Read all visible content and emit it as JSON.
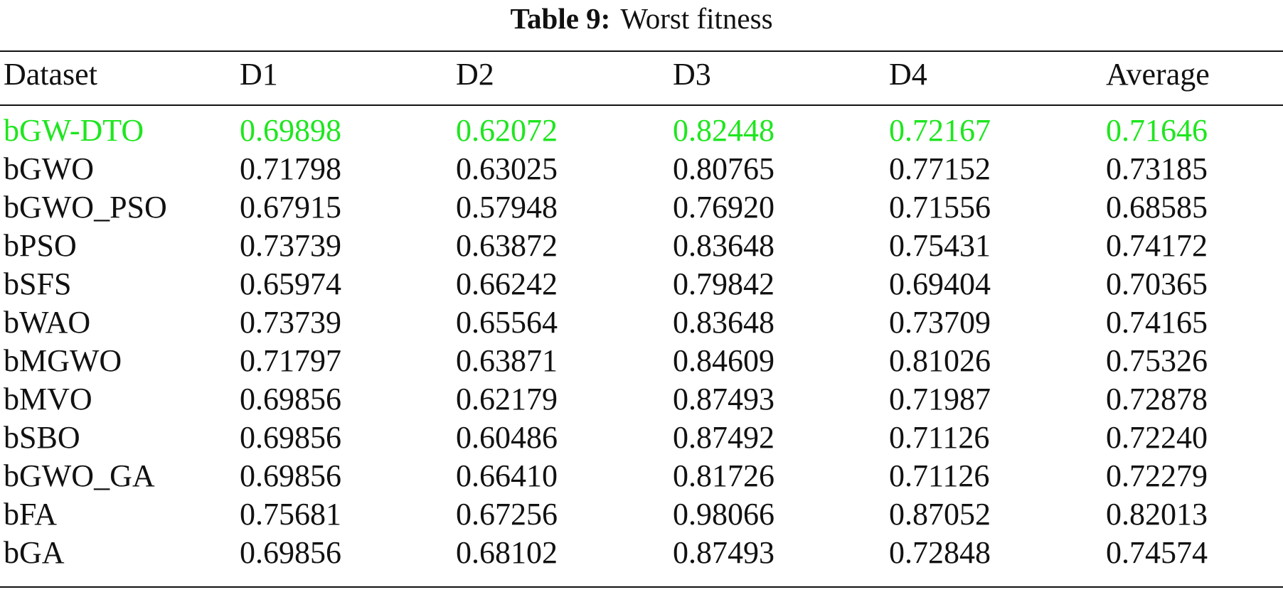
{
  "caption": {
    "label": "Table 9:",
    "text": "Worst fitness"
  },
  "colors": {
    "highlight": "#1ee61e",
    "text": "#111111"
  },
  "table": {
    "columns": [
      "Dataset",
      "D1",
      "D2",
      "D3",
      "D4",
      "Average"
    ],
    "rows": [
      [
        "bGW-DTO",
        "0.69898",
        "0.62072",
        "0.82448",
        "0.72167",
        "0.71646"
      ],
      [
        "bGWO",
        "0.71798",
        "0.63025",
        "0.80765",
        "0.77152",
        "0.73185"
      ],
      [
        "bGWO_PSO",
        "0.67915",
        "0.57948",
        "0.76920",
        "0.71556",
        "0.68585"
      ],
      [
        "bPSO",
        "0.73739",
        "0.63872",
        "0.83648",
        "0.75431",
        "0.74172"
      ],
      [
        "bSFS",
        "0.65974",
        "0.66242",
        "0.79842",
        "0.69404",
        "0.70365"
      ],
      [
        "bWAO",
        "0.73739",
        "0.65564",
        "0.83648",
        "0.73709",
        "0.74165"
      ],
      [
        "bMGWO",
        "0.71797",
        "0.63871",
        "0.84609",
        "0.81026",
        "0.75326"
      ],
      [
        "bMVO",
        "0.69856",
        "0.62179",
        "0.87493",
        "0.71987",
        "0.72878"
      ],
      [
        "bSBO",
        "0.69856",
        "0.60486",
        "0.87492",
        "0.71126",
        "0.72240"
      ],
      [
        "bGWO_GA",
        "0.69856",
        "0.66410",
        "0.81726",
        "0.71126",
        "0.72279"
      ],
      [
        "bFA",
        "0.75681",
        "0.67256",
        "0.98066",
        "0.87052",
        "0.82013"
      ],
      [
        "bGA",
        "0.69856",
        "0.68102",
        "0.87493",
        "0.72848",
        "0.74574"
      ]
    ],
    "highlighted_row": 0
  }
}
